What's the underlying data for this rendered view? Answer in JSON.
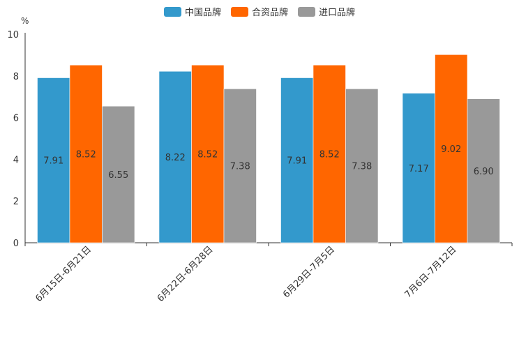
{
  "chart_data": {
    "type": "bar",
    "ylabel": "%",
    "ylim": [
      0,
      10
    ],
    "yticks": [
      0,
      2,
      4,
      6,
      8,
      10
    ],
    "categories": [
      "6月15日-6月21日",
      "6月22日-6月28日",
      "6月29日-7月5日",
      "7月6日-7月12日"
    ],
    "series": [
      {
        "name": "中国品牌",
        "color": "#3399CC",
        "values": [
          7.91,
          8.22,
          7.91,
          7.17
        ],
        "labels": [
          "7.91",
          "8.22",
          "7.91",
          "7.17"
        ]
      },
      {
        "name": "合资品牌",
        "color": "#FF6600",
        "values": [
          8.52,
          8.52,
          8.52,
          9.02
        ],
        "labels": [
          "8.52",
          "8.52",
          "8.52",
          "9.02"
        ]
      },
      {
        "name": "进口品牌",
        "color": "#999999",
        "values": [
          6.55,
          7.38,
          7.38,
          6.9
        ],
        "labels": [
          "6.55",
          "7.38",
          "7.38",
          "6.90"
        ]
      }
    ],
    "legend": "top-center",
    "grid": false
  }
}
